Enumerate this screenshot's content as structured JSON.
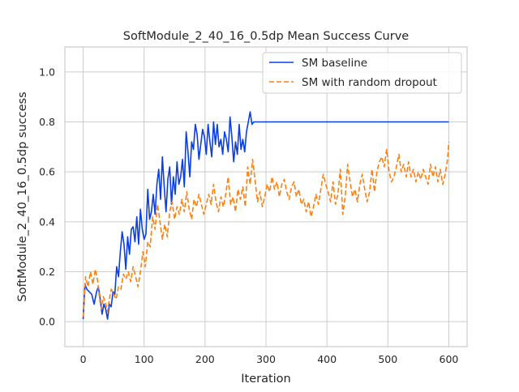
{
  "chart_data": {
    "type": "line",
    "title": "SoftModule_2_40_16_0.5dp Mean Success Curve",
    "xlabel": "Iteration",
    "ylabel": "SoftModule_2_40_16_0.5dp success",
    "xlim": [
      -30,
      630
    ],
    "ylim": [
      -0.1,
      1.1
    ],
    "xticks": [
      0,
      100,
      200,
      300,
      400,
      500,
      600
    ],
    "yticks": [
      0.0,
      0.2,
      0.4,
      0.6,
      0.8,
      1.0
    ],
    "xtick_labels": [
      "0",
      "100",
      "200",
      "300",
      "400",
      "500",
      "600"
    ],
    "ytick_labels": [
      "0.0",
      "0.2",
      "0.4",
      "0.6",
      "0.8",
      "1.0"
    ],
    "grid": true,
    "legend_position": "top-right",
    "series": [
      {
        "name": "SM baseline",
        "color": "#0a3ee6",
        "style": "solid",
        "points": [
          [
            0,
            0.01
          ],
          [
            3,
            0.15
          ],
          [
            6,
            0.13
          ],
          [
            10,
            0.12
          ],
          [
            14,
            0.11
          ],
          [
            18,
            0.07
          ],
          [
            22,
            0.12
          ],
          [
            25,
            0.14
          ],
          [
            28,
            0.09
          ],
          [
            31,
            0.03
          ],
          [
            34,
            0.07
          ],
          [
            37,
            0.05
          ],
          [
            40,
            0.01
          ],
          [
            43,
            0.07
          ],
          [
            46,
            0.06
          ],
          [
            49,
            0.12
          ],
          [
            52,
            0.11
          ],
          [
            55,
            0.22
          ],
          [
            58,
            0.18
          ],
          [
            61,
            0.28
          ],
          [
            64,
            0.36
          ],
          [
            67,
            0.31
          ],
          [
            70,
            0.21
          ],
          [
            73,
            0.34
          ],
          [
            76,
            0.27
          ],
          [
            79,
            0.37
          ],
          [
            82,
            0.38
          ],
          [
            85,
            0.32
          ],
          [
            88,
            0.42
          ],
          [
            91,
            0.31
          ],
          [
            94,
            0.45
          ],
          [
            97,
            0.37
          ],
          [
            100,
            0.33
          ],
          [
            103,
            0.35
          ],
          [
            106,
            0.53
          ],
          [
            109,
            0.41
          ],
          [
            112,
            0.44
          ],
          [
            115,
            0.51
          ],
          [
            118,
            0.43
          ],
          [
            121,
            0.55
          ],
          [
            124,
            0.61
          ],
          [
            127,
            0.49
          ],
          [
            130,
            0.66
          ],
          [
            133,
            0.54
          ],
          [
            136,
            0.44
          ],
          [
            139,
            0.57
          ],
          [
            142,
            0.62
          ],
          [
            145,
            0.47
          ],
          [
            148,
            0.58
          ],
          [
            151,
            0.51
          ],
          [
            154,
            0.64
          ],
          [
            157,
            0.55
          ],
          [
            160,
            0.58
          ],
          [
            163,
            0.65
          ],
          [
            166,
            0.54
          ],
          [
            169,
            0.76
          ],
          [
            172,
            0.68
          ],
          [
            175,
            0.58
          ],
          [
            178,
            0.72
          ],
          [
            181,
            0.69
          ],
          [
            184,
            0.79
          ],
          [
            187,
            0.75
          ],
          [
            190,
            0.65
          ],
          [
            193,
            0.71
          ],
          [
            196,
            0.77
          ],
          [
            199,
            0.74
          ],
          [
            202,
            0.67
          ],
          [
            205,
            0.79
          ],
          [
            208,
            0.72
          ],
          [
            211,
            0.66
          ],
          [
            214,
            0.8
          ],
          [
            217,
            0.71
          ],
          [
            220,
            0.79
          ],
          [
            223,
            0.7
          ],
          [
            226,
            0.73
          ],
          [
            229,
            0.67
          ],
          [
            232,
            0.76
          ],
          [
            235,
            0.73
          ],
          [
            238,
            0.68
          ],
          [
            241,
            0.82
          ],
          [
            244,
            0.74
          ],
          [
            247,
            0.64
          ],
          [
            250,
            0.72
          ],
          [
            253,
            0.67
          ],
          [
            256,
            0.79
          ],
          [
            259,
            0.69
          ],
          [
            262,
            0.73
          ],
          [
            265,
            0.68
          ],
          [
            268,
            0.76
          ],
          [
            271,
            0.8
          ],
          [
            274,
            0.84
          ],
          [
            277,
            0.79
          ],
          [
            280,
            0.8
          ],
          [
            600,
            0.8
          ]
        ]
      },
      {
        "name": "SM with random dropout",
        "color": "#ff7f0e",
        "style": "dashed",
        "points": [
          [
            0,
            0.02
          ],
          [
            4,
            0.18
          ],
          [
            8,
            0.14
          ],
          [
            12,
            0.2
          ],
          [
            16,
            0.15
          ],
          [
            20,
            0.21
          ],
          [
            24,
            0.16
          ],
          [
            27,
            0.09
          ],
          [
            30,
            0.05
          ],
          [
            33,
            0.1
          ],
          [
            36,
            0.08
          ],
          [
            40,
            0.04
          ],
          [
            43,
            0.09
          ],
          [
            46,
            0.13
          ],
          [
            50,
            0.11
          ],
          [
            54,
            0.09
          ],
          [
            58,
            0.14
          ],
          [
            62,
            0.13
          ],
          [
            66,
            0.19
          ],
          [
            70,
            0.17
          ],
          [
            74,
            0.2
          ],
          [
            78,
            0.16
          ],
          [
            82,
            0.22
          ],
          [
            86,
            0.18
          ],
          [
            90,
            0.14
          ],
          [
            94,
            0.2
          ],
          [
            98,
            0.28
          ],
          [
            102,
            0.22
          ],
          [
            106,
            0.32
          ],
          [
            110,
            0.3
          ],
          [
            114,
            0.42
          ],
          [
            118,
            0.37
          ],
          [
            122,
            0.47
          ],
          [
            126,
            0.4
          ],
          [
            130,
            0.33
          ],
          [
            134,
            0.39
          ],
          [
            138,
            0.34
          ],
          [
            142,
            0.44
          ],
          [
            146,
            0.48
          ],
          [
            150,
            0.41
          ],
          [
            154,
            0.46
          ],
          [
            158,
            0.43
          ],
          [
            162,
            0.49
          ],
          [
            166,
            0.44
          ],
          [
            170,
            0.52
          ],
          [
            174,
            0.45
          ],
          [
            178,
            0.41
          ],
          [
            182,
            0.49
          ],
          [
            186,
            0.46
          ],
          [
            190,
            0.51
          ],
          [
            194,
            0.47
          ],
          [
            198,
            0.43
          ],
          [
            202,
            0.47
          ],
          [
            206,
            0.51
          ],
          [
            210,
            0.47
          ],
          [
            214,
            0.55
          ],
          [
            218,
            0.48
          ],
          [
            222,
            0.44
          ],
          [
            226,
            0.5
          ],
          [
            230,
            0.46
          ],
          [
            234,
            0.51
          ],
          [
            238,
            0.58
          ],
          [
            242,
            0.47
          ],
          [
            246,
            0.5
          ],
          [
            250,
            0.44
          ],
          [
            254,
            0.53
          ],
          [
            258,
            0.49
          ],
          [
            262,
            0.54
          ],
          [
            266,
            0.46
          ],
          [
            270,
            0.62
          ],
          [
            274,
            0.55
          ],
          [
            278,
            0.65
          ],
          [
            282,
            0.57
          ],
          [
            286,
            0.48
          ],
          [
            290,
            0.52
          ],
          [
            294,
            0.46
          ],
          [
            298,
            0.5
          ],
          [
            302,
            0.55
          ],
          [
            306,
            0.52
          ],
          [
            310,
            0.58
          ],
          [
            314,
            0.53
          ],
          [
            318,
            0.56
          ],
          [
            322,
            0.5
          ],
          [
            326,
            0.55
          ],
          [
            330,
            0.57
          ],
          [
            334,
            0.52
          ],
          [
            338,
            0.49
          ],
          [
            342,
            0.54
          ],
          [
            346,
            0.56
          ],
          [
            350,
            0.5
          ],
          [
            354,
            0.53
          ],
          [
            358,
            0.47
          ],
          [
            362,
            0.49
          ],
          [
            366,
            0.44
          ],
          [
            370,
            0.48
          ],
          [
            374,
            0.42
          ],
          [
            378,
            0.46
          ],
          [
            382,
            0.51
          ],
          [
            386,
            0.47
          ],
          [
            390,
            0.53
          ],
          [
            394,
            0.59
          ],
          [
            398,
            0.55
          ],
          [
            402,
            0.52
          ],
          [
            406,
            0.48
          ],
          [
            410,
            0.56
          ],
          [
            414,
            0.47
          ],
          [
            418,
            0.51
          ],
          [
            422,
            0.61
          ],
          [
            426,
            0.43
          ],
          [
            430,
            0.5
          ],
          [
            434,
            0.63
          ],
          [
            438,
            0.56
          ],
          [
            442,
            0.5
          ],
          [
            446,
            0.53
          ],
          [
            450,
            0.48
          ],
          [
            454,
            0.55
          ],
          [
            458,
            0.59
          ],
          [
            462,
            0.53
          ],
          [
            466,
            0.48
          ],
          [
            470,
            0.52
          ],
          [
            474,
            0.61
          ],
          [
            478,
            0.52
          ],
          [
            482,
            0.6
          ],
          [
            486,
            0.64
          ],
          [
            490,
            0.66
          ],
          [
            494,
            0.62
          ],
          [
            498,
            0.69
          ],
          [
            502,
            0.6
          ],
          [
            506,
            0.56
          ],
          [
            510,
            0.58
          ],
          [
            514,
            0.62
          ],
          [
            518,
            0.67
          ],
          [
            522,
            0.6
          ],
          [
            526,
            0.63
          ],
          [
            530,
            0.58
          ],
          [
            534,
            0.64
          ],
          [
            538,
            0.58
          ],
          [
            542,
            0.61
          ],
          [
            546,
            0.56
          ],
          [
            550,
            0.6
          ],
          [
            554,
            0.57
          ],
          [
            558,
            0.61
          ],
          [
            562,
            0.58
          ],
          [
            566,
            0.55
          ],
          [
            570,
            0.63
          ],
          [
            574,
            0.58
          ],
          [
            578,
            0.62
          ],
          [
            582,
            0.56
          ],
          [
            586,
            0.61
          ],
          [
            590,
            0.55
          ],
          [
            594,
            0.59
          ],
          [
            598,
            0.65
          ],
          [
            600,
            0.72
          ]
        ]
      }
    ]
  }
}
